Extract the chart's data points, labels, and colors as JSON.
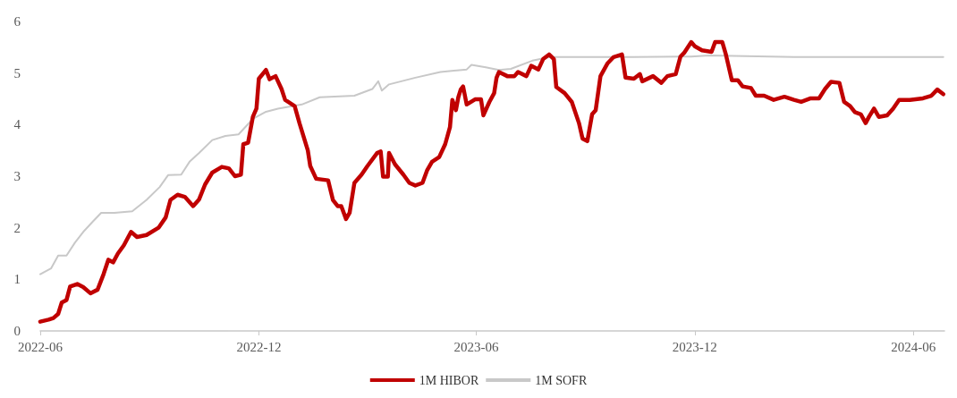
{
  "chart_data": {
    "type": "line",
    "xlim": [
      "2022-06-01",
      "2024-06-27"
    ],
    "xticks": [
      "2022-06",
      "2022-12",
      "2023-06",
      "2023-12",
      "2024-06"
    ],
    "ylim": [
      0,
      6
    ],
    "yticks": [
      0,
      1,
      2,
      3,
      4,
      5,
      6
    ],
    "grid": false,
    "legend": "bottom",
    "marker": "none",
    "line_style": "solid",
    "series": [
      {
        "name": "1M HIBOR",
        "color": "#c00000",
        "x": [
          "2022-06-01",
          "2022-06-08",
          "2022-06-12",
          "2022-06-16",
          "2022-06-19",
          "2022-06-23",
          "2022-06-26",
          "2022-07-02",
          "2022-07-07",
          "2022-07-13",
          "2022-07-19",
          "2022-07-24",
          "2022-07-28",
          "2022-08-01",
          "2022-08-05",
          "2022-08-10",
          "2022-08-16",
          "2022-08-21",
          "2022-08-29",
          "2022-09-08",
          "2022-09-14",
          "2022-09-18",
          "2022-09-24",
          "2022-09-30",
          "2022-10-07",
          "2022-10-12",
          "2022-10-17",
          "2022-10-23",
          "2022-10-31",
          "2022-11-06",
          "2022-11-11",
          "2022-11-16",
          "2022-11-18",
          "2022-11-22",
          "2022-11-26",
          "2022-11-29",
          "2022-12-01",
          "2022-12-07",
          "2022-12-10",
          "2022-12-15",
          "2022-12-20",
          "2022-12-23",
          "2022-12-31",
          "2023-01-04",
          "2023-01-11",
          "2023-01-13",
          "2023-01-18",
          "2023-01-28",
          "2023-02-01",
          "2023-02-05",
          "2023-02-08",
          "2023-02-12",
          "2023-02-15",
          "2023-02-19",
          "2023-02-25",
          "2023-03-02",
          "2023-03-10",
          "2023-03-13",
          "2023-03-15",
          "2023-03-19",
          "2023-03-20",
          "2023-03-25",
          "2023-04-01",
          "2023-04-06",
          "2023-04-11",
          "2023-04-17",
          "2023-04-21",
          "2023-04-25",
          "2023-05-01",
          "2023-05-06",
          "2023-05-10",
          "2023-05-12",
          "2023-05-15",
          "2023-05-17",
          "2023-05-19",
          "2023-05-21",
          "2023-05-24",
          "2023-05-31",
          "2023-06-05",
          "2023-06-07",
          "2023-06-12",
          "2023-06-16",
          "2023-06-18",
          "2023-06-20",
          "2023-06-27",
          "2023-07-03",
          "2023-07-06",
          "2023-07-13",
          "2023-07-17",
          "2023-07-23",
          "2023-07-27",
          "2023-08-01",
          "2023-08-05",
          "2023-08-07",
          "2023-08-14",
          "2023-08-20",
          "2023-08-26",
          "2023-08-29",
          "2023-09-02",
          "2023-09-06",
          "2023-09-09",
          "2023-09-13",
          "2023-09-19",
          "2023-09-24",
          "2023-10-01",
          "2023-10-04",
          "2023-10-11",
          "2023-10-16",
          "2023-10-18",
          "2023-10-27",
          "2023-11-03",
          "2023-11-08",
          "2023-11-15",
          "2023-11-19",
          "2023-11-22",
          "2023-11-28",
          "2023-12-01",
          "2023-12-07",
          "2023-12-15",
          "2023-12-18",
          "2023-12-24",
          "2023-12-27",
          "2024-01-01",
          "2024-01-06",
          "2024-01-10",
          "2024-01-17",
          "2024-01-21",
          "2024-01-28",
          "2024-02-05",
          "2024-02-14",
          "2024-02-22",
          "2024-02-28",
          "2024-03-07",
          "2024-03-14",
          "2024-03-19",
          "2024-03-24",
          "2024-03-31",
          "2024-04-04",
          "2024-04-09",
          "2024-04-13",
          "2024-04-18",
          "2024-04-22",
          "2024-04-25",
          "2024-04-29",
          "2024-05-03",
          "2024-05-10",
          "2024-05-15",
          "2024-05-20",
          "2024-05-29",
          "2024-06-09",
          "2024-06-16",
          "2024-06-21",
          "2024-06-26"
        ],
        "values": [
          0.18,
          0.22,
          0.25,
          0.33,
          0.55,
          0.6,
          0.86,
          0.91,
          0.85,
          0.73,
          0.8,
          1.1,
          1.38,
          1.33,
          1.5,
          1.66,
          1.92,
          1.82,
          1.86,
          2.0,
          2.2,
          2.54,
          2.64,
          2.6,
          2.42,
          2.55,
          2.84,
          3.07,
          3.18,
          3.15,
          3.0,
          3.03,
          3.62,
          3.65,
          4.15,
          4.31,
          4.89,
          5.06,
          4.88,
          4.94,
          4.69,
          4.48,
          4.36,
          4.03,
          3.5,
          3.2,
          2.95,
          2.92,
          2.54,
          2.42,
          2.42,
          2.17,
          2.29,
          2.87,
          3.03,
          3.2,
          3.45,
          3.48,
          2.99,
          2.99,
          3.45,
          3.23,
          3.03,
          2.87,
          2.82,
          2.87,
          3.12,
          3.28,
          3.37,
          3.62,
          3.95,
          4.48,
          4.28,
          4.53,
          4.68,
          4.74,
          4.39,
          4.49,
          4.49,
          4.18,
          4.44,
          4.61,
          4.91,
          5.02,
          4.94,
          4.94,
          5.02,
          4.94,
          5.14,
          5.07,
          5.27,
          5.36,
          5.27,
          4.73,
          4.61,
          4.44,
          4.03,
          3.73,
          3.68,
          4.2,
          4.28,
          4.94,
          5.19,
          5.31,
          5.36,
          4.91,
          4.89,
          4.98,
          4.84,
          4.94,
          4.81,
          4.94,
          4.98,
          5.32,
          5.39,
          5.6,
          5.52,
          5.44,
          5.41,
          5.6,
          5.6,
          5.36,
          4.86,
          4.86,
          4.74,
          4.71,
          4.56,
          4.56,
          4.48,
          4.54,
          4.48,
          4.44,
          4.51,
          4.51,
          4.69,
          4.83,
          4.81,
          4.44,
          4.36,
          4.24,
          4.2,
          4.03,
          4.16,
          4.31,
          4.15,
          4.18,
          4.31,
          4.48,
          4.48,
          4.51,
          4.56,
          4.68,
          4.59
        ]
      },
      {
        "name": "1M SOFR",
        "color": "#c8c8c8",
        "x": [
          "2022-06-01",
          "2022-06-10",
          "2022-06-16",
          "2022-06-23",
          "2022-06-30",
          "2022-07-07",
          "2022-07-15",
          "2022-07-22",
          "2022-08-02",
          "2022-08-17",
          "2022-08-29",
          "2022-09-09",
          "2022-09-16",
          "2022-09-27",
          "2022-10-04",
          "2022-10-12",
          "2022-10-23",
          "2022-11-03",
          "2022-11-14",
          "2022-11-26",
          "2022-12-07",
          "2022-12-17",
          "2023-01-06",
          "2023-01-21",
          "2023-02-19",
          "2023-03-06",
          "2023-03-11",
          "2023-03-14",
          "2023-03-20",
          "2023-04-11",
          "2023-05-02",
          "2023-05-24",
          "2023-05-28",
          "2023-06-09",
          "2023-06-20",
          "2023-06-30",
          "2023-07-18",
          "2023-08-02",
          "2023-10-11",
          "2023-11-28",
          "2023-12-13",
          "2024-02-22",
          "2024-05-03",
          "2024-06-26"
        ],
        "values": [
          1.1,
          1.21,
          1.46,
          1.46,
          1.71,
          1.92,
          2.12,
          2.29,
          2.29,
          2.32,
          2.54,
          2.79,
          3.02,
          3.03,
          3.28,
          3.45,
          3.7,
          3.78,
          3.81,
          4.11,
          4.25,
          4.31,
          4.39,
          4.53,
          4.56,
          4.69,
          4.84,
          4.66,
          4.78,
          4.91,
          5.02,
          5.07,
          5.16,
          5.11,
          5.06,
          5.08,
          5.24,
          5.31,
          5.31,
          5.32,
          5.34,
          5.31,
          5.31,
          5.31
        ]
      }
    ]
  }
}
